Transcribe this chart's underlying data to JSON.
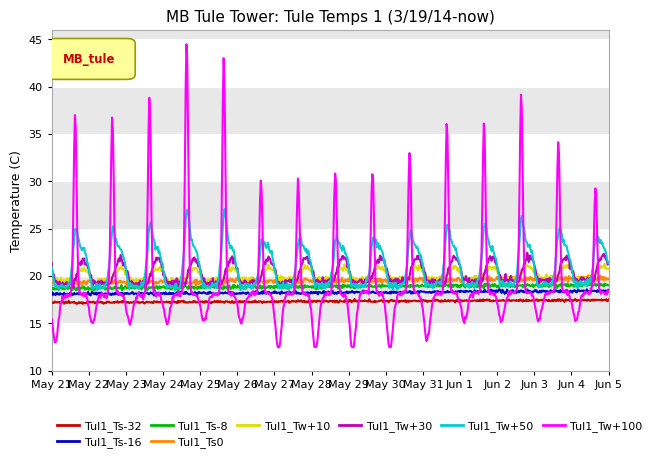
{
  "title": "MB Tule Tower: Tule Temps 1 (3/19/14-now)",
  "ylabel": "Temperature (C)",
  "ylim": [
    10,
    46
  ],
  "yticks": [
    10,
    15,
    20,
    25,
    30,
    35,
    40,
    45
  ],
  "series": [
    {
      "name": "Tul1_Ts-32",
      "color": "#cc0000",
      "lw": 1.5
    },
    {
      "name": "Tul1_Ts-16",
      "color": "#0000cc",
      "lw": 1.5
    },
    {
      "name": "Tul1_Ts-8",
      "color": "#00bb00",
      "lw": 1.5
    },
    {
      "name": "Tul1_Ts0",
      "color": "#ff8800",
      "lw": 1.5
    },
    {
      "name": "Tul1_Tw+10",
      "color": "#dddd00",
      "lw": 1.5
    },
    {
      "name": "Tul1_Tw+30",
      "color": "#bb00bb",
      "lw": 1.5
    },
    {
      "name": "Tul1_Tw+50",
      "color": "#00cccc",
      "lw": 1.5
    },
    {
      "name": "Tul1_Tw+100",
      "color": "#ff00ff",
      "lw": 1.5
    }
  ],
  "x_tick_labels": [
    "May 21",
    "May 22",
    "May 23",
    "May 24",
    "May 25",
    "May 26",
    "May 27",
    "May 28",
    "May 29",
    "May 30",
    "May 31",
    "Jun 1",
    "Jun 2",
    "Jun 3",
    "Jun 4",
    "Jun 5"
  ],
  "band_colors": [
    "#ffffff",
    "#e8e8e8"
  ],
  "fig_facecolor": "#ffffff",
  "ax_facecolor": "#ffffff"
}
